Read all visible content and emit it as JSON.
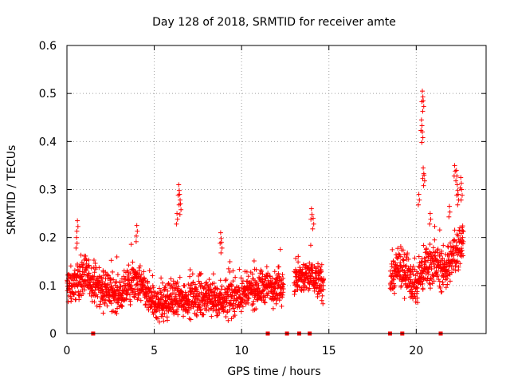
{
  "chart_data": {
    "type": "scatter",
    "title": "Day 128 of 2018, SRMTID for receiver amte",
    "xlabel": "GPS time / hours",
    "ylabel": "SRMTID / TECUs",
    "xlim": [
      0,
      24
    ],
    "ylim": [
      0,
      0.6
    ],
    "xticks": [
      "0",
      "5",
      "10",
      "15",
      "20"
    ],
    "yticks": [
      "0",
      "0.1",
      "0.2",
      "0.3",
      "0.4",
      "0.5",
      "0.6"
    ],
    "grid": true,
    "marker": "+",
    "series_color": "#ff0000",
    "data_segments": [
      {
        "start": 0.0,
        "end": 12.4,
        "baseline": [
          [
            0,
            0.095
          ],
          [
            1,
            0.12
          ],
          [
            2,
            0.09
          ],
          [
            3,
            0.08
          ],
          [
            4,
            0.11
          ],
          [
            5,
            0.06
          ],
          [
            6,
            0.07
          ],
          [
            7,
            0.075
          ],
          [
            8,
            0.075
          ],
          [
            9,
            0.07
          ],
          [
            10,
            0.08
          ],
          [
            11,
            0.095
          ],
          [
            12,
            0.1
          ],
          [
            12.4,
            0.1
          ]
        ],
        "spread": 0.03
      },
      {
        "start": 13.0,
        "end": 14.7,
        "baseline": [
          [
            13,
            0.11
          ],
          [
            14,
            0.12
          ],
          [
            14.7,
            0.1
          ]
        ],
        "spread": 0.03
      },
      {
        "start": 18.5,
        "end": 22.7,
        "baseline": [
          [
            18.5,
            0.12
          ],
          [
            19,
            0.13
          ],
          [
            19.5,
            0.13
          ],
          [
            20,
            0.1
          ],
          [
            20.5,
            0.14
          ],
          [
            21,
            0.15
          ],
          [
            21.5,
            0.13
          ],
          [
            22,
            0.15
          ],
          [
            22.7,
            0.2
          ]
        ],
        "spread": 0.035
      }
    ],
    "spikes": [
      {
        "x": 0.6,
        "y": 0.235
      },
      {
        "x": 0.55,
        "y": 0.2
      },
      {
        "x": 4.0,
        "y": 0.225
      },
      {
        "x": 6.4,
        "y": 0.31
      },
      {
        "x": 6.45,
        "y": 0.29
      },
      {
        "x": 6.5,
        "y": 0.27
      },
      {
        "x": 6.3,
        "y": 0.25
      },
      {
        "x": 8.8,
        "y": 0.21
      },
      {
        "x": 8.85,
        "y": 0.19
      },
      {
        "x": 14.0,
        "y": 0.26
      },
      {
        "x": 14.1,
        "y": 0.24
      },
      {
        "x": 20.35,
        "y": 0.505
      },
      {
        "x": 20.4,
        "y": 0.485
      },
      {
        "x": 20.3,
        "y": 0.445
      },
      {
        "x": 20.35,
        "y": 0.42
      },
      {
        "x": 20.4,
        "y": 0.345
      },
      {
        "x": 20.45,
        "y": 0.33
      },
      {
        "x": 20.15,
        "y": 0.29
      },
      {
        "x": 20.8,
        "y": 0.25
      },
      {
        "x": 21.9,
        "y": 0.265
      },
      {
        "x": 22.2,
        "y": 0.35
      },
      {
        "x": 22.3,
        "y": 0.34
      },
      {
        "x": 22.35,
        "y": 0.31
      },
      {
        "x": 22.4,
        "y": 0.29
      },
      {
        "x": 22.55,
        "y": 0.325
      },
      {
        "x": 22.6,
        "y": 0.3
      }
    ],
    "zero_markers_x": [
      1.5,
      11.5,
      12.6,
      13.3,
      13.9,
      18.5,
      19.2,
      21.4
    ]
  }
}
